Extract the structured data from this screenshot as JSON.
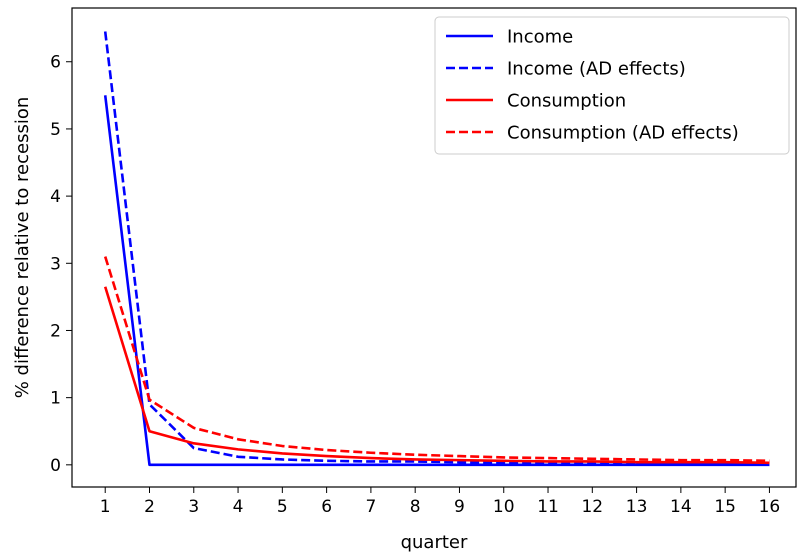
{
  "chart_data": {
    "type": "line",
    "title": "",
    "xlabel": "quarter",
    "ylabel": "% difference relative to recession",
    "x": [
      1,
      2,
      3,
      4,
      5,
      6,
      7,
      8,
      9,
      10,
      11,
      12,
      13,
      14,
      15,
      16
    ],
    "xlim": [
      0.25,
      16.6
    ],
    "ylim": [
      -0.33,
      6.8
    ],
    "xticks": [
      1,
      2,
      3,
      4,
      5,
      6,
      7,
      8,
      9,
      10,
      11,
      12,
      13,
      14,
      15,
      16
    ],
    "yticks": [
      0,
      1,
      2,
      3,
      4,
      5,
      6
    ],
    "grid": false,
    "legend_position": "top-right",
    "series": [
      {
        "name": "Income",
        "color": "#0000ff",
        "dash": "solid",
        "values": [
          5.5,
          0,
          0,
          0,
          0,
          0,
          0,
          0,
          0,
          0,
          0,
          0,
          0,
          0,
          0,
          0
        ]
      },
      {
        "name": "Income (AD effects)",
        "color": "#0000ff",
        "dash": "dashed",
        "values": [
          6.45,
          0.9,
          0.25,
          0.12,
          0.08,
          0.06,
          0.05,
          0.05,
          0.04,
          0.04,
          0.04,
          0.04,
          0.03,
          0.03,
          0.03,
          0.03
        ]
      },
      {
        "name": "Consumption",
        "color": "#ff0000",
        "dash": "solid",
        "values": [
          2.65,
          0.5,
          0.32,
          0.23,
          0.17,
          0.13,
          0.1,
          0.08,
          0.07,
          0.06,
          0.05,
          0.05,
          0.04,
          0.04,
          0.04,
          0.03
        ]
      },
      {
        "name": "Consumption (AD effects)",
        "color": "#ff0000",
        "dash": "dashed",
        "values": [
          3.1,
          0.97,
          0.55,
          0.38,
          0.28,
          0.22,
          0.18,
          0.15,
          0.13,
          0.11,
          0.1,
          0.09,
          0.08,
          0.07,
          0.07,
          0.06
        ]
      }
    ]
  }
}
